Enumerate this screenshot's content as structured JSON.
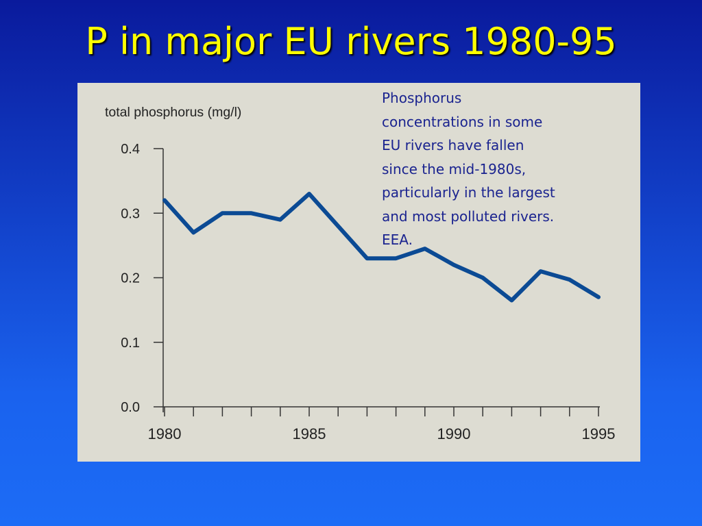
{
  "slide": {
    "title": "P in major EU rivers 1980-95"
  },
  "caption": "Phosphorus\nconcentrations in some\nEU rivers have fallen\nsince the mid-1980s,\nparticularly in the largest\nand most polluted rivers.\nEEA.",
  "chart_data": {
    "type": "line",
    "title": "",
    "ylabel": "total phosphorus (mg/l)",
    "xlabel": "",
    "xlim": [
      1980,
      1995
    ],
    "ylim": [
      0.0,
      0.4
    ],
    "yticks": [
      "0.0",
      "0.1",
      "0.2",
      "0.3",
      "0.4"
    ],
    "xticks": [
      "1980",
      "1985",
      "1990",
      "1995"
    ],
    "grid": false,
    "colors": {
      "line": "#0b4a94",
      "axis": "#333333",
      "panel": "#dddcd2"
    },
    "series": [
      {
        "x": [
          1980,
          1981,
          1982,
          1983,
          1984,
          1985,
          1986,
          1987,
          1988,
          1989,
          1990,
          1991,
          1992,
          1993,
          1994,
          1995
        ],
        "values": [
          0.32,
          0.27,
          0.3,
          0.3,
          0.29,
          0.33,
          0.28,
          0.23,
          0.23,
          0.245,
          0.22,
          0.2,
          0.165,
          0.21,
          0.197,
          0.17
        ]
      }
    ]
  }
}
